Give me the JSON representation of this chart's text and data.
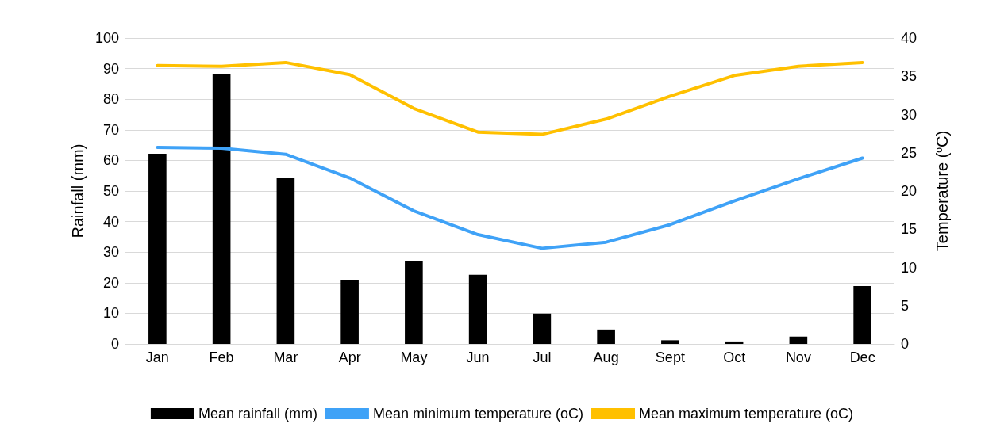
{
  "chart_data": {
    "type": "bar",
    "ylabel": "Rainfall (mm)",
    "y2label": "Temperature ($^{o}$C)",
    "categories": [
      "Jan",
      "Feb",
      "Mar",
      "Apr",
      "May",
      "Jun",
      "Jul",
      "Aug",
      "Sept",
      "Oct",
      "Nov",
      "Dec"
    ],
    "series": [
      {
        "name": "Mean rainfall (mm)",
        "color": "#000000",
        "values": [
          62.2,
          88.1,
          54.2,
          21,
          27,
          22.6,
          9.9,
          4.7,
          1.2,
          0.8,
          2.4,
          18.9
        ]
      },
      {
        "name": "Mean minimum temperature (oC)",
        "type": "line",
        "axis": "y2",
        "color": "#3fa2f7",
        "values": [
          25.7,
          25.6,
          24.8,
          21.7,
          17.4,
          14.3,
          12.5,
          13.3,
          15.6,
          18.7,
          21.6,
          24.3
        ]
      },
      {
        "name": "Mean maximum temperature (oC)",
        "type": "line",
        "axis": "y2",
        "color": "#ffc000",
        "values": [
          36.4,
          36.3,
          36.8,
          35.2,
          30.8,
          27.7,
          27.4,
          29.4,
          32.4,
          35.1,
          36.3,
          36.8
        ]
      }
    ],
    "ylim": [
      0,
      100
    ],
    "yticks": [
      0,
      10,
      20,
      30,
      40,
      50,
      60,
      70,
      80,
      90,
      100
    ],
    "y2lim": [
      0,
      40
    ],
    "y2ticks": [
      0,
      5,
      10,
      15,
      20,
      25,
      30,
      35,
      40
    ],
    "grid": "y",
    "legend": "bottom",
    "marker": "none",
    "line_style": "solid"
  }
}
